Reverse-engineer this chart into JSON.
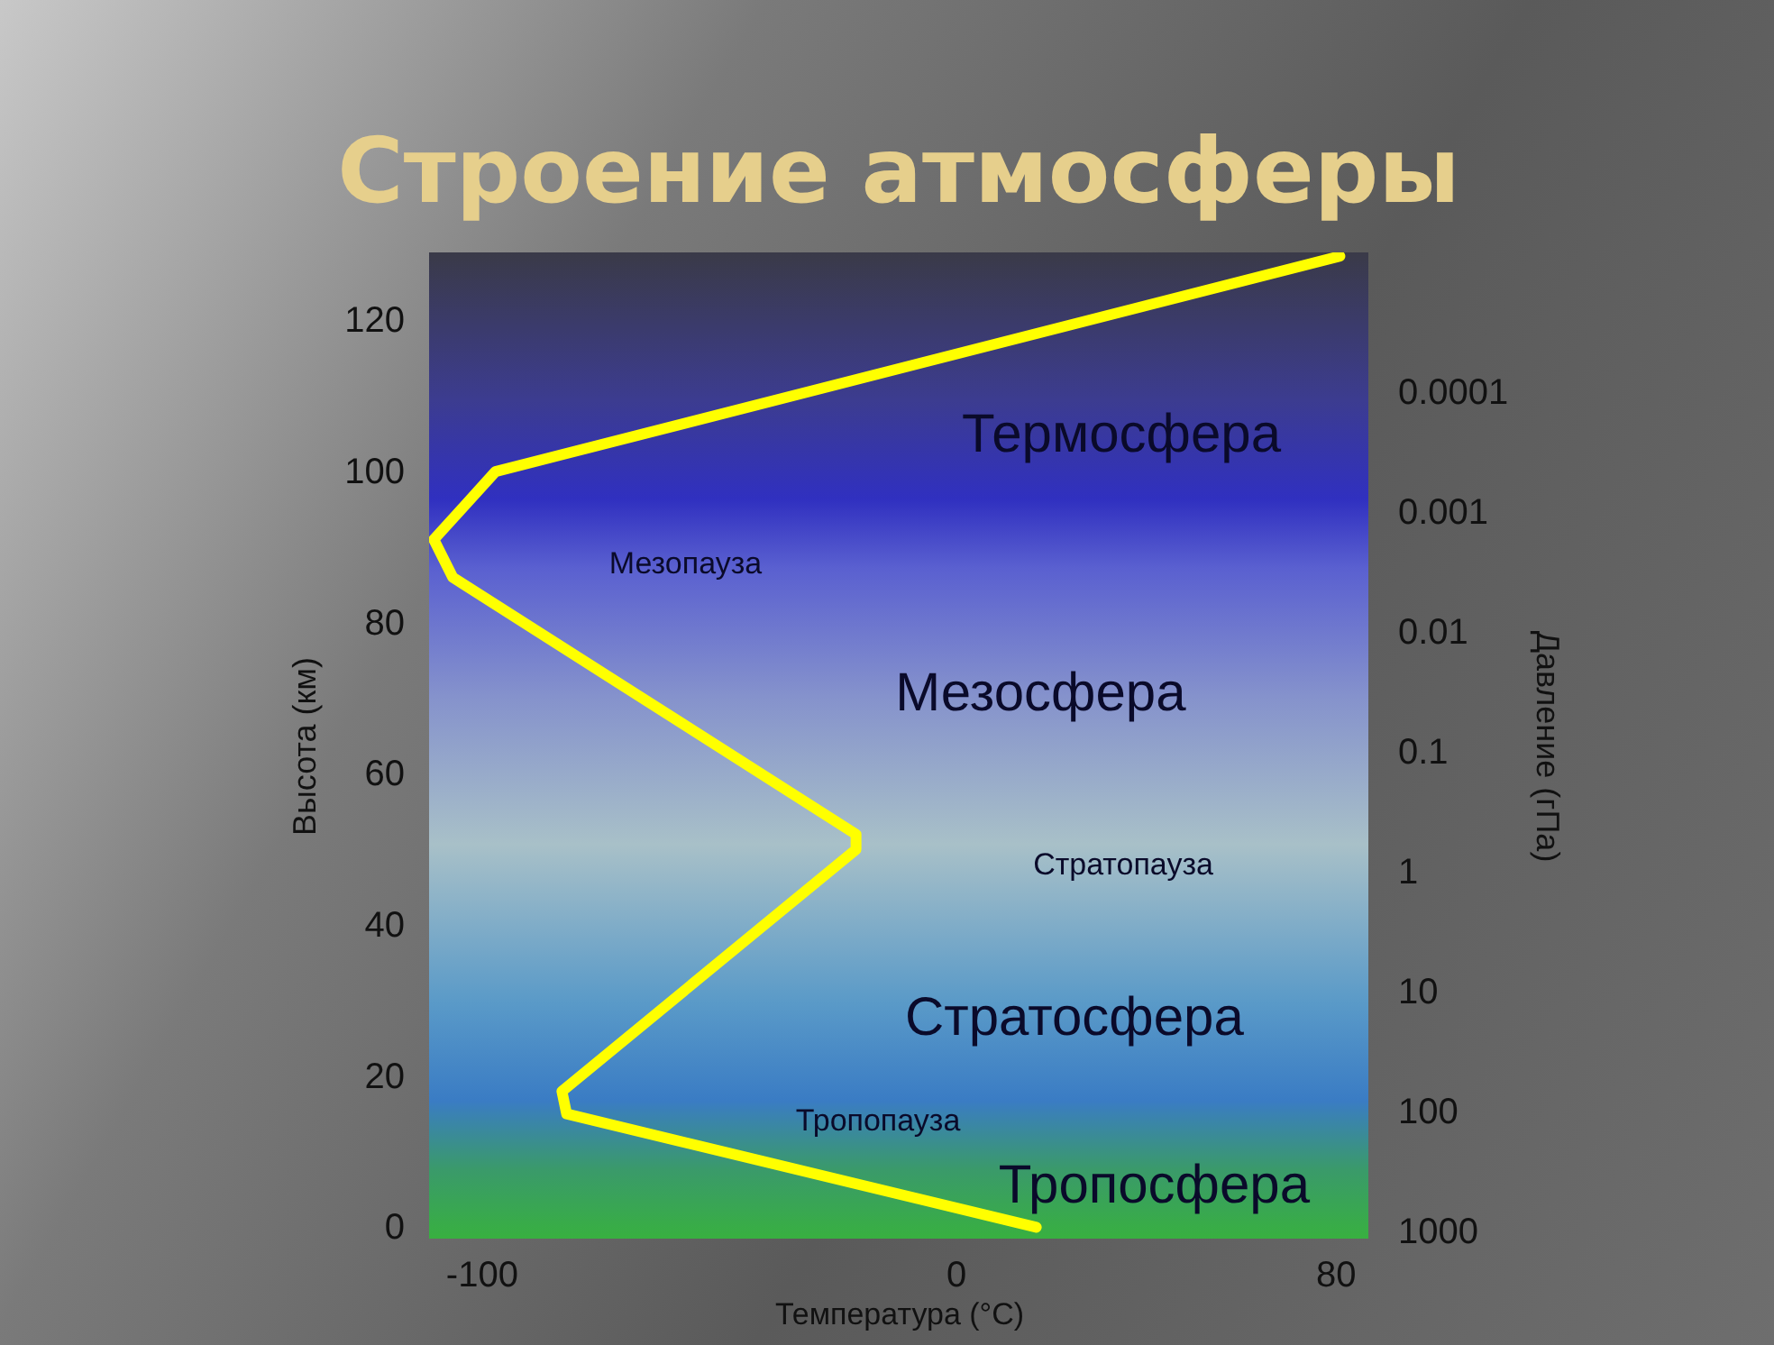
{
  "chart_data": {
    "type": "line",
    "title": "Строение атмосферы",
    "xlabel": "Температура (°C)",
    "ylabel": "Высота (км)",
    "y2label": "Давление (гПа)",
    "series": [
      {
        "color": "#ffff00",
        "x": [
          17,
          -82,
          -83,
          -21,
          -21,
          -106,
          -110,
          -97,
          81
        ],
        "values": [
          0,
          15,
          18,
          50,
          52,
          86,
          91,
          100,
          128.5
        ]
      }
    ],
    "xlim": [
      -111,
      87
    ],
    "xticks": [
      -100,
      0,
      80
    ],
    "ylim": [
      -1.5,
      129
    ],
    "yticks": [
      0,
      20,
      40,
      60,
      80,
      100,
      120
    ],
    "y2lim": [
      1150,
      6.8e-06
    ],
    "y2ticks": [
      0.0001,
      0.001,
      0.01,
      0.1,
      1,
      10,
      100,
      1000
    ],
    "log": "y2",
    "grid": false,
    "marker": "none",
    "line_style": "solid",
    "annotations": [
      "Термосфера",
      "Мезопауза",
      "Мезосфера",
      "Стратопауза",
      "Стратосфера",
      "Тропопауза",
      "Тропосфера"
    ]
  }
}
